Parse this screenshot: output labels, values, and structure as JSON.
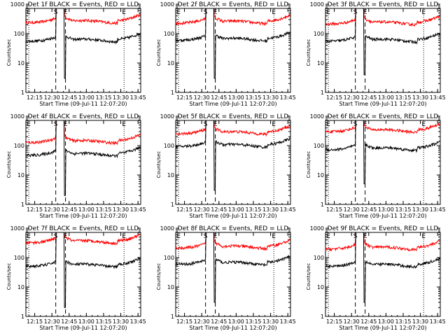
{
  "chart_data": {
    "type": "line",
    "layout": "3x3 grid",
    "shared": {
      "xlabel": "Start Time (09-Jul-11 12:07:20)",
      "ylabel": "Counts/sec",
      "x_ticks": [
        "12:15",
        "12:30",
        "12:45",
        "13:00",
        "13:15",
        "13:30",
        "13:45"
      ],
      "x_range_minutes": [
        0,
        100
      ],
      "x_tick_minutes": [
        7.67,
        22.67,
        37.67,
        52.67,
        67.67,
        82.67,
        97.67
      ],
      "y_scale": "log",
      "y_range": [
        1,
        1000
      ],
      "y_ticks": [
        "1",
        "10",
        "100",
        "1000"
      ],
      "series": [
        {
          "name": "LLD",
          "color": "#ff0000"
        },
        {
          "name": "Events",
          "color": "#000000"
        }
      ],
      "markers": [
        {
          "label": "E",
          "minute": 2.5,
          "style": "dotted"
        },
        {
          "label": "S",
          "minute": 26.0,
          "style": "dashed"
        },
        {
          "label": "E",
          "minute": 34.5,
          "style": "dashed"
        },
        {
          "label": "E",
          "minute": 85.5,
          "style": "dotted"
        }
      ]
    },
    "panels": [
      {
        "title": "Det 1f BLACK = Events, RED = LLD",
        "lld_level": 280,
        "events_level": 65,
        "gap_depth": 3
      },
      {
        "title": "Det 2f BLACK = Events, RED = LLD",
        "lld_level": 270,
        "events_level": 70,
        "gap_depth": 3
      },
      {
        "title": "Det 3f BLACK = Events, RED = LLD",
        "lld_level": 250,
        "events_level": 65,
        "gap_depth": 4
      },
      {
        "title": "Det 4f BLACK = Events, RED = LLD",
        "lld_level": 150,
        "events_level": 55,
        "gap_depth": 2
      },
      {
        "title": "Det 5f BLACK = Events, RED = LLD",
        "lld_level": 300,
        "events_level": 110,
        "gap_depth": 3
      },
      {
        "title": "Det 6f BLACK = Events, RED = LLD",
        "lld_level": 350,
        "events_level": 85,
        "gap_depth": 5
      },
      {
        "title": "Det 7f BLACK = Events, RED = LLD",
        "lld_level": 380,
        "events_level": 60,
        "gap_depth": 2
      },
      {
        "title": "Det 8f BLACK = Events, RED = LLD",
        "lld_level": 250,
        "events_level": 70,
        "gap_depth": 3
      },
      {
        "title": "Det 9f BLACK = Events, RED = LLD",
        "lld_level": 230,
        "events_level": 60,
        "gap_depth": 3
      }
    ]
  }
}
